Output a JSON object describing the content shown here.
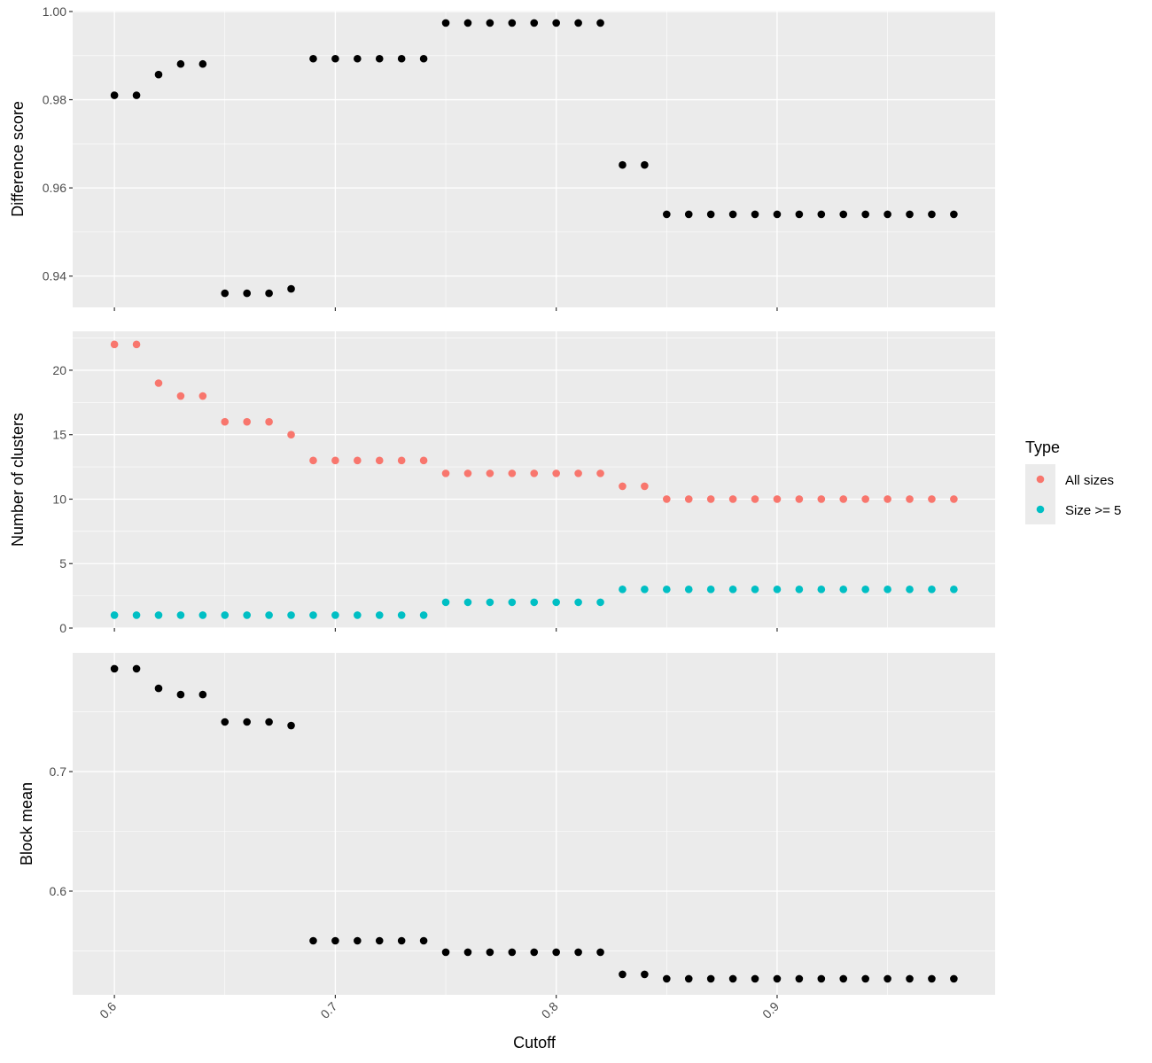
{
  "chart_data": [
    {
      "type": "scatter",
      "title": "",
      "xlabel": "Cutoff",
      "ylabel": "Difference score",
      "xlim": [
        0.5811,
        0.9987
      ],
      "ylim": [
        0.9329,
        1.0002
      ],
      "xticks": [
        0.6,
        0.7,
        0.8,
        0.9
      ],
      "xtick_labels": [
        "0.6",
        "0.7",
        "0.8",
        "0.9"
      ],
      "yticks": [
        0.94,
        0.96,
        0.98,
        1.0
      ],
      "ytick_labels": [
        "0.94",
        "0.96",
        "0.98",
        "1.00"
      ],
      "yminor": [
        0.95,
        0.97,
        0.99
      ],
      "grid": true,
      "series": [
        {
          "name": "Difference score",
          "color": "#000000",
          "values": [
            0.981,
            0.981,
            0.9857,
            0.9881,
            0.9881,
            0.9361,
            0.9361,
            0.9361,
            0.9371,
            0.9893,
            0.9893,
            0.9893,
            0.9893,
            0.9893,
            0.9893,
            0.9974,
            0.9974,
            0.9974,
            0.9974,
            0.9974,
            0.9974,
            0.9974,
            0.9974,
            0.9652,
            0.9652,
            0.954,
            0.954,
            0.954,
            0.954,
            0.954,
            0.954,
            0.954,
            0.954,
            0.954,
            0.954,
            0.954,
            0.954,
            0.954,
            0.954
          ]
        }
      ]
    },
    {
      "type": "scatter",
      "title": "",
      "xlabel": "Cutoff",
      "ylabel": "Number of clusters",
      "xlim": [
        0.5811,
        0.9987
      ],
      "ylim": [
        0,
        23.02
      ],
      "xticks": [
        0.6,
        0.7,
        0.8,
        0.9
      ],
      "xtick_labels": [
        "0.6",
        "0.7",
        "0.8",
        "0.9"
      ],
      "yticks": [
        0,
        5,
        10,
        15,
        20
      ],
      "ytick_labels": [
        "0",
        "5",
        "10",
        "15",
        "20"
      ],
      "yminor": [
        2.5,
        7.5,
        12.5,
        17.5,
        22.5
      ],
      "grid": true,
      "legend": {
        "title": "Type",
        "placement": "right"
      },
      "series": [
        {
          "name": "All sizes",
          "color": "#F8766D",
          "values": [
            22,
            22,
            19,
            18,
            18,
            16,
            16,
            16,
            15,
            13,
            13,
            13,
            13,
            13,
            13,
            12,
            12,
            12,
            12,
            12,
            12,
            12,
            12,
            11,
            11,
            10,
            10,
            10,
            10,
            10,
            10,
            10,
            10,
            10,
            10,
            10,
            10,
            10,
            10
          ]
        },
        {
          "name": "Size >= 5",
          "color": "#00BFC4",
          "values": [
            1,
            1,
            1,
            1,
            1,
            1,
            1,
            1,
            1,
            1,
            1,
            1,
            1,
            1,
            1,
            2,
            2,
            2,
            2,
            2,
            2,
            2,
            2,
            3,
            3,
            3,
            3,
            3,
            3,
            3,
            3,
            3,
            3,
            3,
            3,
            3,
            3,
            3,
            3
          ]
        }
      ]
    },
    {
      "type": "scatter",
      "title": "",
      "xlabel": "Cutoff",
      "ylabel": "Block mean",
      "xlim": [
        0.5811,
        0.9987
      ],
      "ylim": [
        0.5133,
        0.7993
      ],
      "xticks": [
        0.6,
        0.7,
        0.8,
        0.9
      ],
      "xtick_labels": [
        "0.6",
        "0.7",
        "0.8",
        "0.9"
      ],
      "yticks": [
        0.6,
        0.7
      ],
      "ytick_labels": [
        "0.6",
        "0.7"
      ],
      "yminor": [
        0.55,
        0.65,
        0.75
      ],
      "grid": true,
      "series": [
        {
          "name": "Block mean",
          "color": "#000000",
          "values": [
            0.786,
            0.786,
            0.7696,
            0.7644,
            0.7644,
            0.7415,
            0.7415,
            0.7415,
            0.7385,
            0.5585,
            0.5585,
            0.5585,
            0.5585,
            0.5585,
            0.5585,
            0.5489,
            0.5489,
            0.5489,
            0.5489,
            0.5489,
            0.5489,
            0.5489,
            0.5489,
            0.5304,
            0.5304,
            0.5267,
            0.5267,
            0.5267,
            0.5267,
            0.5267,
            0.5267,
            0.5267,
            0.5267,
            0.5267,
            0.5267,
            0.5267,
            0.5267,
            0.5267,
            0.5267
          ]
        }
      ]
    }
  ],
  "x_values": [
    0.6,
    0.61,
    0.62,
    0.63,
    0.64,
    0.65,
    0.66,
    0.67,
    0.68,
    0.69,
    0.7,
    0.71,
    0.72,
    0.73,
    0.74,
    0.75,
    0.76,
    0.77,
    0.78,
    0.79,
    0.8,
    0.81,
    0.82,
    0.83,
    0.84,
    0.85,
    0.86,
    0.87,
    0.88,
    0.89,
    0.9,
    0.91,
    0.92,
    0.93,
    0.94,
    0.95,
    0.96,
    0.97,
    0.98
  ],
  "xminor": [
    0.65,
    0.75,
    0.85,
    0.95
  ],
  "shared_xlabel": "Cutoff",
  "legend": {
    "title": "Type",
    "entries": [
      "All sizes",
      "Size >= 5"
    ]
  }
}
